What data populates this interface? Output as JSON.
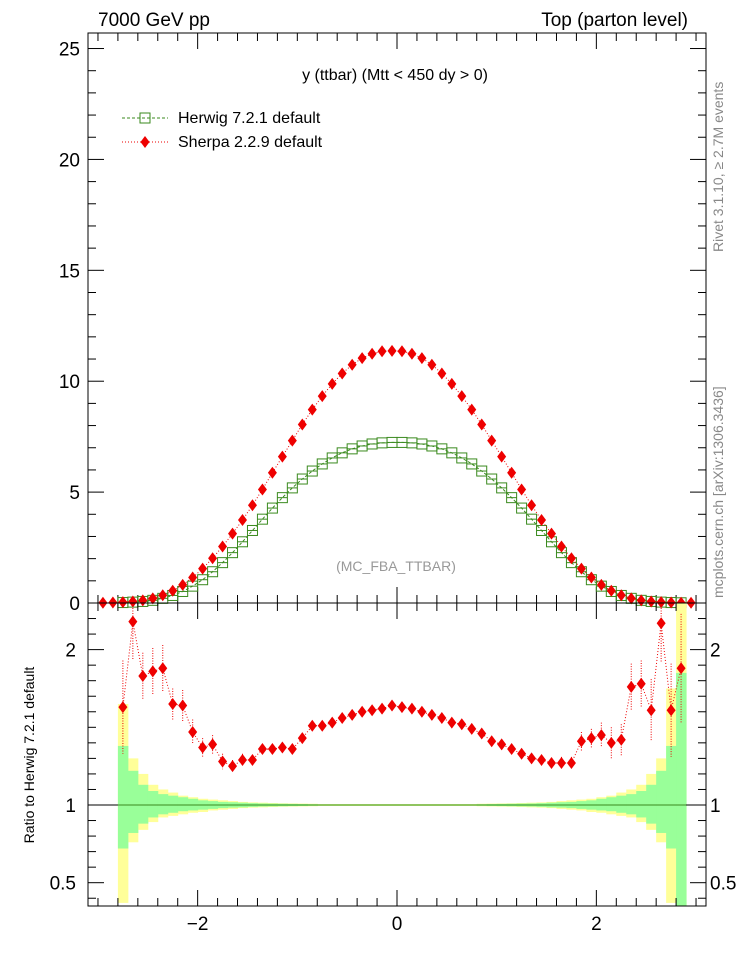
{
  "header": {
    "left": "7000 GeV pp",
    "right": "Top (parton level)"
  },
  "side": {
    "rivet": "Rivet 3.1.10, ≥ 2.7M events",
    "mcplots": "mcplots.cern.ch [arXiv:1306.3436]"
  },
  "colors": {
    "herwig": "#3a8a1e",
    "sherpa": "#ee0000",
    "band_inner": "#99ff99",
    "band_outer": "#ffff99"
  },
  "chart_data": [
    {
      "type": "line",
      "panel": "main",
      "title": "y (ttbar) (Mtt < 450 dy > 0)",
      "watermark": "(MC_FBA_TTBAR)",
      "xlim": [
        -3.1,
        3.1
      ],
      "ylim": [
        0,
        25.7
      ],
      "yticks": [
        0,
        5,
        10,
        15,
        20,
        25
      ],
      "legend_position": "top-left",
      "bin_edges": [
        -2.8,
        -2.7,
        -2.6,
        -2.5,
        -2.4,
        -2.3,
        -2.2,
        -2.1,
        -2.0,
        -1.9,
        -1.8,
        -1.7,
        -1.6,
        -1.5,
        -1.4,
        -1.3,
        -1.2,
        -1.1,
        -1.0,
        -0.9,
        -0.8,
        -0.7,
        -0.6,
        -0.5,
        -0.4,
        -0.3,
        -0.2,
        -0.1,
        0.0,
        0.1,
        0.2,
        0.3,
        0.4,
        0.5,
        0.6,
        0.7,
        0.8,
        0.9,
        1.0,
        1.1,
        1.2,
        1.3,
        1.4,
        1.5,
        1.6,
        1.7,
        1.8,
        1.9,
        2.0,
        2.1,
        2.2,
        2.3,
        2.4,
        2.5,
        2.6,
        2.7,
        2.8,
        2.9
      ],
      "series": [
        {
          "name": "Herwig 7.2.1 default",
          "marker": "open-square",
          "x": [
            -2.75,
            -2.65,
            -2.55,
            -2.45,
            -2.35,
            -2.25,
            -2.15,
            -2.05,
            -1.95,
            -1.85,
            -1.75,
            -1.65,
            -1.55,
            -1.45,
            -1.35,
            -1.25,
            -1.15,
            -1.05,
            -0.95,
            -0.85,
            -0.75,
            -0.65,
            -0.55,
            -0.45,
            -0.35,
            -0.25,
            -0.15,
            -0.05,
            0.05,
            0.15,
            0.25,
            0.35,
            0.45,
            0.55,
            0.65,
            0.75,
            0.85,
            0.95,
            1.05,
            1.15,
            1.25,
            1.35,
            1.45,
            1.55,
            1.65,
            1.75,
            1.85,
            1.95,
            2.05,
            2.15,
            2.25,
            2.35,
            2.45,
            2.55,
            2.65,
            2.75,
            2.85
          ],
          "values": [
            0.02,
            0.04,
            0.07,
            0.12,
            0.21,
            0.34,
            0.52,
            0.76,
            1.05,
            1.41,
            1.82,
            2.27,
            2.76,
            3.27,
            3.78,
            4.28,
            4.75,
            5.19,
            5.59,
            5.95,
            6.27,
            6.54,
            6.77,
            6.95,
            7.08,
            7.17,
            7.22,
            7.24,
            7.24,
            7.22,
            7.17,
            7.08,
            6.95,
            6.77,
            6.54,
            6.27,
            5.95,
            5.59,
            5.19,
            4.75,
            4.28,
            3.78,
            3.27,
            2.76,
            2.27,
            1.82,
            1.41,
            1.05,
            0.76,
            0.52,
            0.34,
            0.21,
            0.12,
            0.07,
            0.04,
            0.02,
            0.01
          ]
        },
        {
          "name": "Sherpa 2.2.9 default",
          "marker": "filled-diamond",
          "x": [
            -2.95,
            -2.85,
            -2.75,
            -2.65,
            -2.55,
            -2.45,
            -2.35,
            -2.25,
            -2.15,
            -2.05,
            -1.95,
            -1.85,
            -1.75,
            -1.65,
            -1.55,
            -1.45,
            -1.35,
            -1.25,
            -1.15,
            -1.05,
            -0.95,
            -0.85,
            -0.75,
            -0.65,
            -0.55,
            -0.45,
            -0.35,
            -0.25,
            -0.15,
            -0.05,
            0.05,
            0.15,
            0.25,
            0.35,
            0.45,
            0.55,
            0.65,
            0.75,
            0.85,
            0.95,
            1.05,
            1.15,
            1.25,
            1.35,
            1.45,
            1.55,
            1.65,
            1.75,
            1.85,
            1.95,
            2.05,
            2.15,
            2.25,
            2.35,
            2.45,
            2.55,
            2.65,
            2.75,
            2.85,
            2.95
          ],
          "values": [
            0.01,
            0.02,
            0.04,
            0.07,
            0.12,
            0.21,
            0.35,
            0.55,
            0.82,
            1.15,
            1.55,
            2.02,
            2.55,
            3.13,
            3.74,
            4.41,
            5.12,
            5.87,
            6.6,
            7.32,
            8.05,
            8.72,
            9.33,
            9.88,
            10.35,
            10.74,
            11.04,
            11.24,
            11.35,
            11.37,
            11.35,
            11.24,
            11.04,
            10.74,
            10.35,
            9.88,
            9.33,
            8.72,
            8.05,
            7.32,
            6.6,
            5.87,
            5.12,
            4.41,
            3.74,
            3.13,
            2.55,
            2.02,
            1.55,
            1.15,
            0.82,
            0.55,
            0.35,
            0.21,
            0.12,
            0.07,
            0.04,
            0.02,
            0.01,
            0.01
          ]
        }
      ]
    },
    {
      "type": "line",
      "panel": "ratio",
      "ylabel": "Ratio to Herwig 7.2.1 default",
      "xlim": [
        -3.1,
        3.1
      ],
      "ylim": [
        0.35,
        2.3
      ],
      "xticks": [
        -2,
        0,
        2
      ],
      "yticks": [
        0.5,
        1,
        2
      ],
      "reference_line": 1,
      "bands": {
        "bin_edges": [
          -2.8,
          -2.7,
          -2.6,
          -2.5,
          -2.4,
          -2.3,
          -2.2,
          -2.1,
          -2.0,
          -1.9,
          -1.8,
          -1.7,
          -1.6,
          -1.5,
          -1.4,
          -1.3,
          -1.2,
          -1.1,
          -1.0,
          -0.9,
          -0.8,
          0.8,
          0.9,
          1.0,
          1.1,
          1.2,
          1.3,
          1.4,
          1.5,
          1.6,
          1.7,
          1.8,
          1.9,
          2.0,
          2.1,
          2.2,
          2.3,
          2.4,
          2.5,
          2.6,
          2.7,
          2.8,
          2.9
        ],
        "inner_up": [
          1.38,
          1.22,
          1.13,
          1.09,
          1.07,
          1.06,
          1.05,
          1.04,
          1.03,
          1.025,
          1.02,
          1.018,
          1.015,
          1.012,
          1.01,
          1.009,
          1.008,
          1.007,
          1.006,
          1.005,
          1.004,
          1.005,
          1.006,
          1.007,
          1.008,
          1.009,
          1.01,
          1.012,
          1.015,
          1.018,
          1.02,
          1.025,
          1.03,
          1.04,
          1.05,
          1.06,
          1.07,
          1.09,
          1.13,
          1.22,
          1.38,
          1.85
        ],
        "inner_dn": [
          0.72,
          0.82,
          0.88,
          0.92,
          0.94,
          0.95,
          0.96,
          0.965,
          0.97,
          0.975,
          0.98,
          0.983,
          0.985,
          0.988,
          0.99,
          0.991,
          0.992,
          0.993,
          0.994,
          0.995,
          0.996,
          0.995,
          0.994,
          0.993,
          0.992,
          0.991,
          0.99,
          0.988,
          0.985,
          0.983,
          0.98,
          0.975,
          0.97,
          0.965,
          0.96,
          0.95,
          0.94,
          0.92,
          0.88,
          0.82,
          0.72,
          0.35
        ],
        "outer_up": [
          1.65,
          1.3,
          1.2,
          1.13,
          1.1,
          1.08,
          1.06,
          1.05,
          1.04,
          1.035,
          1.03,
          1.025,
          1.02,
          1.017,
          1.015,
          1.013,
          1.011,
          1.01,
          1.009,
          1.008,
          1.006,
          1.008,
          1.009,
          1.01,
          1.011,
          1.013,
          1.015,
          1.017,
          1.02,
          1.025,
          1.03,
          1.035,
          1.04,
          1.05,
          1.06,
          1.08,
          1.1,
          1.13,
          1.2,
          1.3,
          1.75,
          2.3
        ],
        "outer_dn": [
          0.37,
          0.76,
          0.84,
          0.89,
          0.92,
          0.93,
          0.94,
          0.95,
          0.955,
          0.965,
          0.97,
          0.975,
          0.98,
          0.983,
          0.985,
          0.987,
          0.989,
          0.99,
          0.991,
          0.992,
          0.994,
          0.992,
          0.991,
          0.99,
          0.989,
          0.987,
          0.985,
          0.983,
          0.98,
          0.975,
          0.97,
          0.965,
          0.955,
          0.95,
          0.94,
          0.93,
          0.92,
          0.89,
          0.84,
          0.76,
          0.37,
          0.35
        ]
      },
      "series": [
        {
          "name": "Sherpa 2.2.9 default",
          "marker": "filled-diamond",
          "x": [
            -2.75,
            -2.65,
            -2.55,
            -2.45,
            -2.35,
            -2.25,
            -2.15,
            -2.05,
            -1.95,
            -1.85,
            -1.75,
            -1.65,
            -1.55,
            -1.45,
            -1.35,
            -1.25,
            -1.15,
            -1.05,
            -0.95,
            -0.85,
            -0.75,
            -0.65,
            -0.55,
            -0.45,
            -0.35,
            -0.25,
            -0.15,
            -0.05,
            0.05,
            0.15,
            0.25,
            0.35,
            0.45,
            0.55,
            0.65,
            0.75,
            0.85,
            0.95,
            1.05,
            1.15,
            1.25,
            1.35,
            1.45,
            1.55,
            1.65,
            1.75,
            1.85,
            1.95,
            2.05,
            2.15,
            2.25,
            2.35,
            2.45,
            2.55,
            2.65,
            2.75,
            2.85
          ],
          "values": [
            1.63,
            2.18,
            1.83,
            1.86,
            1.88,
            1.65,
            1.64,
            1.47,
            1.37,
            1.39,
            1.28,
            1.25,
            1.29,
            1.29,
            1.36,
            1.36,
            1.37,
            1.36,
            1.43,
            1.51,
            1.51,
            1.53,
            1.56,
            1.58,
            1.6,
            1.61,
            1.62,
            1.64,
            1.63,
            1.62,
            1.6,
            1.58,
            1.56,
            1.53,
            1.52,
            1.49,
            1.46,
            1.41,
            1.39,
            1.36,
            1.33,
            1.3,
            1.29,
            1.27,
            1.27,
            1.27,
            1.41,
            1.43,
            1.45,
            1.4,
            1.42,
            1.76,
            1.78,
            1.61,
            2.17,
            1.61,
            1.88
          ],
          "err": [
            0.3,
            0.25,
            0.15,
            0.15,
            0.15,
            0.1,
            0.1,
            0.08,
            0.06,
            0.06,
            0.05,
            0.04,
            0.04,
            0.03,
            0.03,
            0.03,
            0.02,
            0.02,
            0.02,
            0.02,
            0.02,
            0.02,
            0.02,
            0.02,
            0.02,
            0.02,
            0.02,
            0.02,
            0.02,
            0.02,
            0.02,
            0.02,
            0.02,
            0.02,
            0.02,
            0.02,
            0.02,
            0.02,
            0.02,
            0.02,
            0.02,
            0.03,
            0.03,
            0.03,
            0.04,
            0.04,
            0.06,
            0.06,
            0.08,
            0.1,
            0.1,
            0.15,
            0.15,
            0.2,
            0.25,
            0.3,
            0.35
          ]
        }
      ]
    }
  ]
}
